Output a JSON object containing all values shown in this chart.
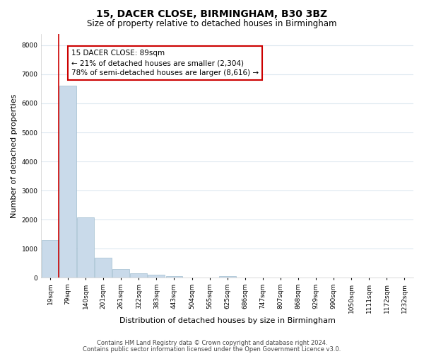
{
  "title": "15, DACER CLOSE, BIRMINGHAM, B30 3BZ",
  "subtitle": "Size of property relative to detached houses in Birmingham",
  "xlabel": "Distribution of detached houses by size in Birmingham",
  "ylabel": "Number of detached properties",
  "bar_color": "#c9daea",
  "bar_edge_color": "#a0bdd0",
  "vline_color": "#cc0000",
  "vline_x_index": 1,
  "bin_labels": [
    "19sqm",
    "79sqm",
    "140sqm",
    "201sqm",
    "261sqm",
    "322sqm",
    "383sqm",
    "443sqm",
    "504sqm",
    "565sqm",
    "625sqm",
    "686sqm",
    "747sqm",
    "807sqm",
    "868sqm",
    "929sqm",
    "990sqm",
    "1050sqm",
    "1111sqm",
    "1172sqm",
    "1232sqm"
  ],
  "bin_left_edges": [
    0,
    1,
    2,
    3,
    4,
    5,
    6,
    7,
    8,
    9,
    10,
    11,
    12,
    13,
    14,
    15,
    16,
    17,
    18,
    19,
    20
  ],
  "bar_heights": [
    1300,
    6600,
    2080,
    680,
    290,
    150,
    90,
    55,
    0,
    0,
    60,
    0,
    0,
    0,
    0,
    0,
    0,
    0,
    0,
    0,
    0
  ],
  "ylim": [
    0,
    8400
  ],
  "yticks": [
    0,
    1000,
    2000,
    3000,
    4000,
    5000,
    6000,
    7000,
    8000
  ],
  "annotation_text": "15 DACER CLOSE: 89sqm\n← 21% of detached houses are smaller (2,304)\n78% of semi-detached houses are larger (8,616) →",
  "annotation_box_facecolor": "#ffffff",
  "annotation_box_edgecolor": "#cc0000",
  "footer_line1": "Contains HM Land Registry data © Crown copyright and database right 2024.",
  "footer_line2": "Contains public sector information licensed under the Open Government Licence v3.0.",
  "fig_facecolor": "#ffffff",
  "plot_facecolor": "#ffffff",
  "grid_color": "#dde8f0",
  "title_fontsize": 10,
  "subtitle_fontsize": 8.5,
  "axis_label_fontsize": 8,
  "tick_fontsize": 6.5,
  "footer_fontsize": 6,
  "annotation_fontsize": 7.5
}
